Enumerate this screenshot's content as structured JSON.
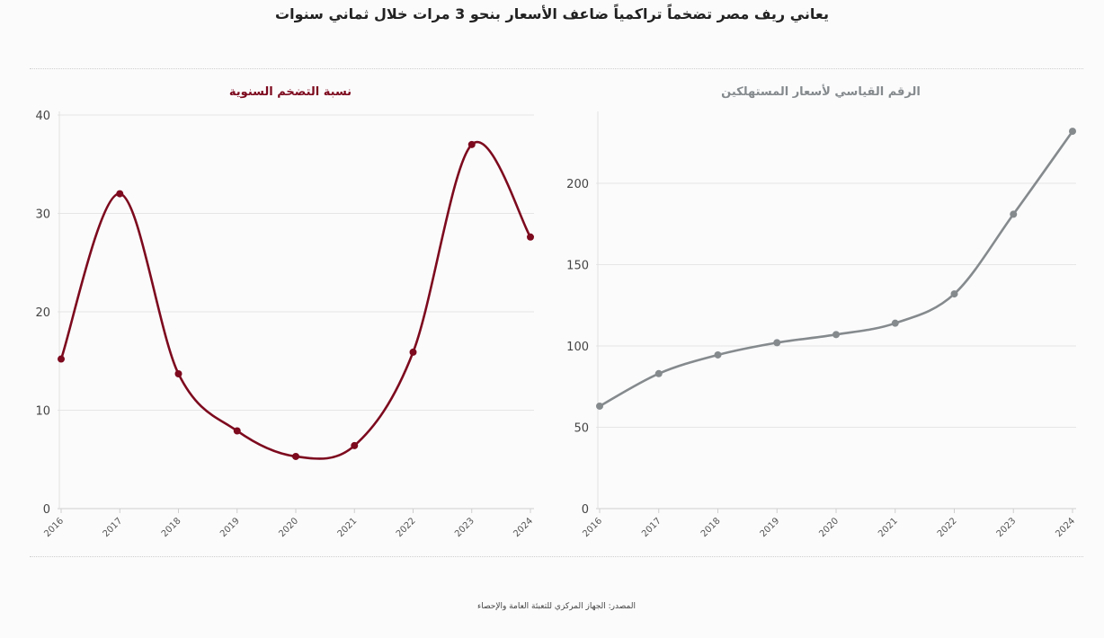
{
  "title": "يعاني ريف مصر تضخماً تراكمياً ضاعف الأسعار بنحو 3 مرات خلال ثماني سنوات",
  "source": "المصدر: الجهاز المركزي للتعبئة العامة والإحصاء",
  "chart_data": [
    {
      "type": "line",
      "title": "نسبة التضخم السنوية",
      "color": "#7d0a1e",
      "x": [
        "2016",
        "2017",
        "2018",
        "2019",
        "2020",
        "2021",
        "2022",
        "2023",
        "2024"
      ],
      "values": [
        15.2,
        32.0,
        13.7,
        7.9,
        5.3,
        6.4,
        15.9,
        37.0,
        27.6
      ],
      "ylim": [
        0,
        40
      ],
      "yticks": [
        0,
        10,
        20,
        30,
        40
      ],
      "grid": true
    },
    {
      "type": "line",
      "title": "الرقم القياسي لأسعار المستهلكين",
      "color": "#858a8d",
      "x": [
        "2016",
        "2017",
        "2018",
        "2019",
        "2020",
        "2021",
        "2022",
        "2023",
        "2024"
      ],
      "values": [
        63,
        83,
        94.5,
        102,
        107,
        114,
        132,
        181,
        232
      ],
      "ylim": [
        0,
        242
      ],
      "yticks": [
        0,
        50,
        100,
        150,
        200
      ],
      "grid": true
    }
  ]
}
